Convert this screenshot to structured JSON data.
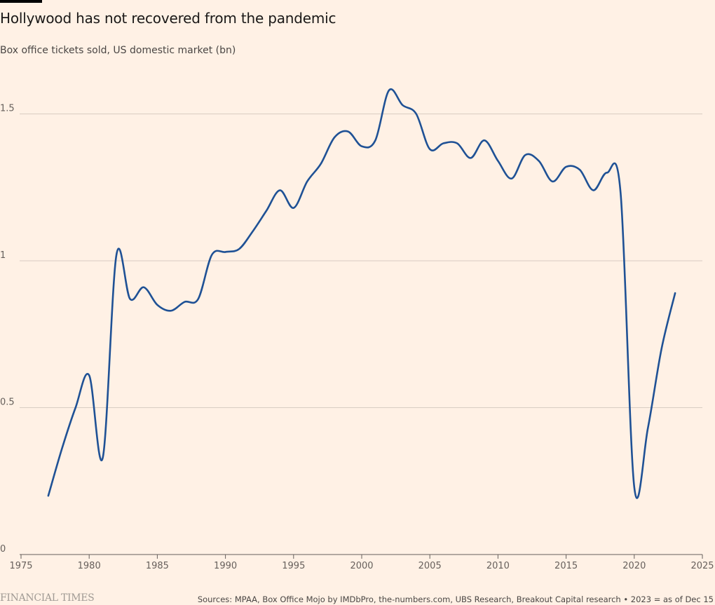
{
  "header": {
    "title": "Hollywood has not recovered from the pandemic",
    "subtitle": "Box office tickets sold, US domestic market (bn)"
  },
  "footer": {
    "logo": "FINANCIAL TIMES",
    "source": "Sources: MPAA, Box Office Mojo by IMDbPro, the-numbers.com, UBS Research, Breakout Capital research • 2023 = as of Dec 15"
  },
  "colors": {
    "background": "#fff1e5",
    "line": "#1f5195"
  },
  "chart_data": {
    "type": "line",
    "title": "Hollywood has not recovered from the pandemic",
    "subtitle": "Box office tickets sold, US domestic market (bn)",
    "xlabel": "",
    "ylabel": "",
    "xlim": [
      1975,
      2025
    ],
    "ylim": [
      0,
      1.6
    ],
    "x_ticks": [
      1975,
      1980,
      1985,
      1990,
      1995,
      2000,
      2005,
      2010,
      2015,
      2020,
      2025
    ],
    "y_ticks": [
      0,
      0.5,
      1,
      1.5
    ],
    "y_tick_labels": [
      "0",
      "0.5",
      "1",
      "1.5"
    ],
    "grid": "horizontal",
    "legend": "none",
    "series": [
      {
        "x": [
          1977,
          1978,
          1979,
          1980,
          1981,
          1982,
          1983,
          1984,
          1985,
          1986,
          1987,
          1988,
          1989,
          1990,
          1991,
          1992,
          1993,
          1994,
          1995,
          1996,
          1997,
          1998,
          1999,
          2000,
          2001,
          2002,
          2003,
          2004,
          2005,
          2006,
          2007,
          2008,
          2009,
          2010,
          2011,
          2012,
          2013,
          2014,
          2015,
          2016,
          2017,
          2018,
          2019,
          2020,
          2021,
          2022,
          2023
        ],
        "values": [
          0.2,
          0.36,
          0.5,
          0.61,
          0.33,
          1.02,
          0.87,
          0.91,
          0.85,
          0.83,
          0.86,
          0.87,
          1.02,
          1.03,
          1.04,
          1.1,
          1.17,
          1.24,
          1.18,
          1.27,
          1.33,
          1.42,
          1.44,
          1.39,
          1.41,
          1.58,
          1.53,
          1.5,
          1.38,
          1.4,
          1.4,
          1.35,
          1.41,
          1.34,
          1.28,
          1.36,
          1.34,
          1.27,
          1.32,
          1.31,
          1.24,
          1.3,
          1.23,
          0.23,
          0.43,
          0.7,
          0.89
        ]
      }
    ]
  }
}
